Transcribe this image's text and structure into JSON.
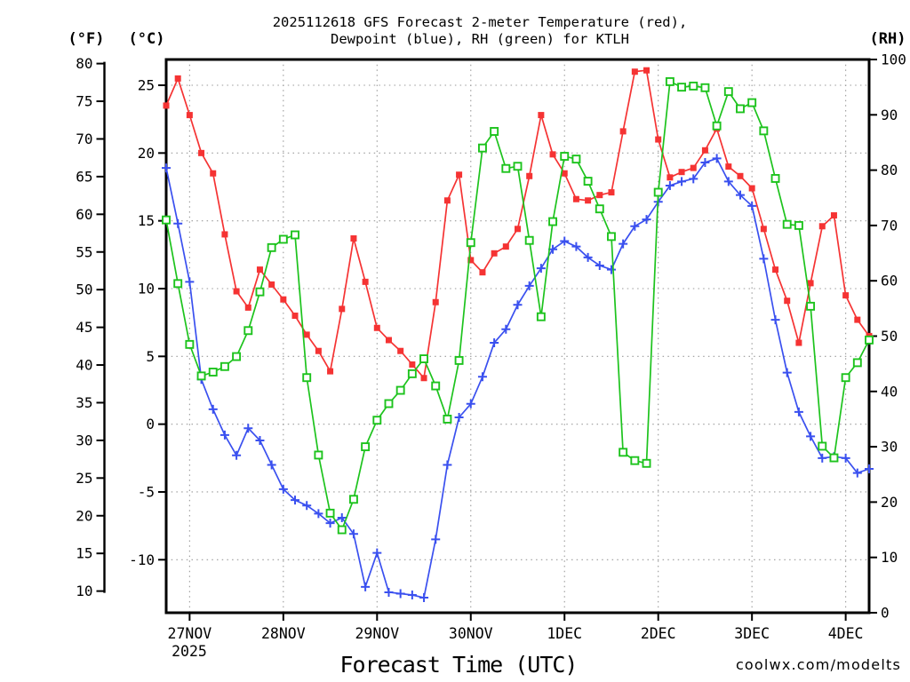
{
  "title": {
    "line1": "2025112618 GFS Forecast 2-meter Temperature (red),",
    "line2": "Dewpoint (blue), RH (green) for KTLH"
  },
  "watermark": "coolwx.com/modelts",
  "colors": {
    "temperature": "#f53333",
    "dewpoint": "#3a50ef",
    "rh": "#1dc31d",
    "watermark": "#f2807f",
    "grid": "#9a9a9a",
    "axis": "#000000",
    "background": "#ffffff"
  },
  "x_axis": {
    "title": "Forecast Time (UTC)",
    "year_label": "2025",
    "ticks": [
      {
        "label": "27NOV",
        "hour": 6
      },
      {
        "label": "28NOV",
        "hour": 30
      },
      {
        "label": "29NOV",
        "hour": 54
      },
      {
        "label": "30NOV",
        "hour": 78
      },
      {
        "label": "1DEC",
        "hour": 102
      },
      {
        "label": "2DEC",
        "hour": 126
      },
      {
        "label": "3DEC",
        "hour": 150
      },
      {
        "label": "4DEC",
        "hour": 174
      }
    ]
  },
  "y_axes": {
    "f": {
      "header": "(°F)",
      "ticks": [
        80,
        75,
        70,
        65,
        60,
        55,
        50,
        45,
        40,
        35,
        30,
        25,
        20,
        15,
        10
      ]
    },
    "c": {
      "header": "(°C)",
      "ticks": [
        25,
        20,
        15,
        10,
        5,
        0,
        -5,
        -10
      ]
    },
    "rh": {
      "header": "(RH)",
      "ticks": [
        100,
        90,
        80,
        70,
        60,
        50,
        40,
        30,
        20,
        10,
        0
      ]
    }
  },
  "chart_data": {
    "type": "line",
    "station": "KTLH",
    "model_run": "2025112618 GFS",
    "x_unit": "hours since 2025-11-26 18:00 UTC",
    "x_step_hours": 3,
    "x_range_hours": [
      0,
      180
    ],
    "celsius_axis_ylim": [
      -14,
      27
    ],
    "rh_axis_ylim": [
      0,
      100
    ],
    "grid": "dotted, vertical at day ticks, horizontal at Celsius ticks",
    "series": [
      {
        "id": "dewpoint-series",
        "name": "Dewpoint (blue)",
        "axis": "c",
        "marker": "plus",
        "color": "#3a50ef",
        "values": [
          18.9,
          14.8,
          10.5,
          3.3,
          1.1,
          -0.8,
          -2.3,
          -0.3,
          -1.2,
          -3.0,
          -4.8,
          -5.6,
          -6.0,
          -6.6,
          -7.3,
          -6.9,
          -8.1,
          -12.0,
          -9.5,
          -12.4,
          -12.5,
          -12.6,
          -12.8,
          -8.5,
          -3.0,
          0.5,
          1.5,
          3.5,
          6.0,
          7.0,
          8.8,
          10.2,
          11.5,
          12.9,
          13.5,
          13.1,
          12.3,
          11.7,
          11.4,
          13.3,
          14.6,
          15.1,
          16.4,
          17.6,
          17.9,
          18.1,
          19.3,
          19.6,
          17.9,
          16.9,
          16.1,
          12.2,
          7.7,
          3.8,
          0.9,
          -0.9,
          -2.5,
          -2.4,
          -2.5,
          -3.6,
          -3.3
        ]
      },
      {
        "id": "temperature-series",
        "name": "2-meter Temperature (red)",
        "axis": "c",
        "marker": "filled-square",
        "color": "#f53333",
        "values": [
          23.5,
          25.5,
          22.8,
          20.0,
          18.5,
          14.0,
          9.8,
          8.6,
          11.4,
          10.3,
          9.2,
          8.0,
          6.6,
          5.4,
          3.9,
          8.5,
          13.7,
          10.5,
          7.1,
          6.2,
          5.4,
          4.4,
          3.4,
          9.0,
          16.5,
          18.4,
          12.1,
          11.2,
          12.6,
          13.1,
          14.4,
          18.3,
          22.8,
          19.9,
          18.5,
          16.6,
          16.5,
          16.9,
          17.1,
          21.6,
          26.0,
          26.1,
          21.0,
          18.2,
          18.6,
          18.9,
          20.2,
          21.8,
          19.0,
          18.3,
          17.4,
          14.4,
          11.4,
          9.1,
          6.0,
          10.4,
          14.6,
          15.4,
          9.5,
          7.7,
          6.5
        ]
      },
      {
        "id": "rh-series",
        "name": "RH (green)",
        "axis": "rh",
        "marker": "open-square",
        "color": "#1dc31d",
        "values": [
          71,
          59.5,
          48.5,
          42.8,
          43.5,
          44.5,
          46.3,
          51,
          58,
          66,
          67.5,
          68.3,
          42.5,
          28.5,
          18,
          15,
          20.5,
          30,
          34.8,
          37.8,
          40.2,
          43.2,
          45.9,
          41,
          35,
          45.6,
          66.9,
          84,
          87,
          80.3,
          80.7,
          67.3,
          53.5,
          70.7,
          82.5,
          82,
          78,
          73,
          68,
          29,
          27.5,
          27,
          76,
          96,
          95,
          95.2,
          94.9,
          88,
          94.2,
          91.1,
          92.2,
          87.1,
          78.5,
          70.2,
          70,
          55.4,
          30.1,
          28,
          42.5,
          45.2,
          49.3
        ]
      }
    ]
  }
}
